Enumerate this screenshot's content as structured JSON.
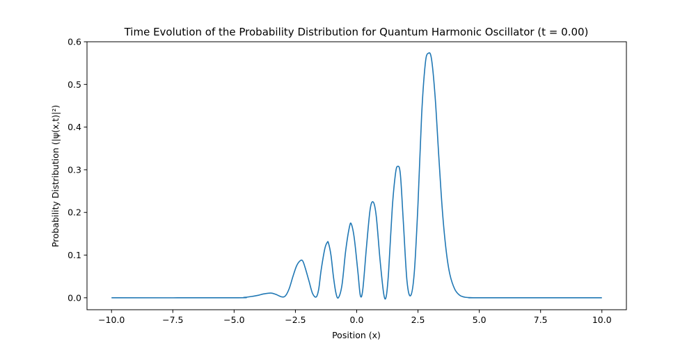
{
  "chart_data": {
    "type": "line",
    "title": "Time Evolution of the Probability Distribution for Quantum Harmonic Oscillator (t = 0.00)",
    "xlabel": "Position (x)",
    "ylabel": "Probability Distribution (|ψ(x,t)|²)",
    "xlim": [
      -11.0,
      11.0
    ],
    "ylim": [
      -0.028,
      0.6
    ],
    "x_ticks": [
      -10.0,
      -7.5,
      -5.0,
      -2.5,
      0.0,
      2.5,
      5.0,
      7.5,
      10.0
    ],
    "x_tick_labels": [
      "−10.0",
      "−7.5",
      "−5.0",
      "−2.5",
      "0.0",
      "2.5",
      "5.0",
      "7.5",
      "10.0"
    ],
    "y_ticks": [
      0.0,
      0.1,
      0.2,
      0.3,
      0.4,
      0.5,
      0.6
    ],
    "y_tick_labels": [
      "0.0",
      "0.1",
      "0.2",
      "0.3",
      "0.4",
      "0.5",
      "0.6"
    ],
    "grid": false,
    "series": [
      {
        "color": "#1f77b4",
        "x": [
          -10.0,
          -5.0,
          -4.6,
          -4.3,
          -4.0,
          -3.8,
          -3.5,
          -3.3,
          -3.05,
          -2.9,
          -2.75,
          -2.6,
          -2.45,
          -2.3,
          -2.2,
          -2.1,
          -1.95,
          -1.8,
          -1.65,
          -1.55,
          -1.45,
          -1.3,
          -1.2,
          -1.15,
          -1.05,
          -0.95,
          -0.85,
          -0.75,
          -0.6,
          -0.45,
          -0.3,
          -0.22,
          -0.1,
          0.05,
          0.15,
          0.25,
          0.4,
          0.55,
          0.68,
          0.8,
          0.95,
          1.1,
          1.2,
          1.3,
          1.45,
          1.58,
          1.67,
          1.78,
          1.9,
          2.05,
          2.2,
          2.35,
          2.5,
          2.65,
          2.8,
          2.92,
          3.05,
          3.2,
          3.35,
          3.5,
          3.65,
          3.8,
          4.0,
          4.2,
          4.4,
          4.6,
          4.8,
          5.0,
          10.0
        ],
        "y": [
          0.0,
          0.0,
          0.0008,
          0.003,
          0.006,
          0.009,
          0.011,
          0.008,
          0.002,
          0.005,
          0.022,
          0.05,
          0.075,
          0.087,
          0.086,
          0.07,
          0.04,
          0.01,
          0.002,
          0.02,
          0.065,
          0.115,
          0.13,
          0.128,
          0.1,
          0.05,
          0.012,
          0.0,
          0.03,
          0.11,
          0.165,
          0.173,
          0.14,
          0.06,
          0.005,
          0.02,
          0.12,
          0.208,
          0.224,
          0.19,
          0.09,
          0.01,
          0.002,
          0.06,
          0.21,
          0.29,
          0.308,
          0.29,
          0.18,
          0.04,
          0.005,
          0.06,
          0.22,
          0.43,
          0.55,
          0.573,
          0.56,
          0.47,
          0.33,
          0.2,
          0.11,
          0.055,
          0.02,
          0.006,
          0.0015,
          0.0004,
          0.0001,
          0.0,
          0.0
        ]
      }
    ]
  }
}
